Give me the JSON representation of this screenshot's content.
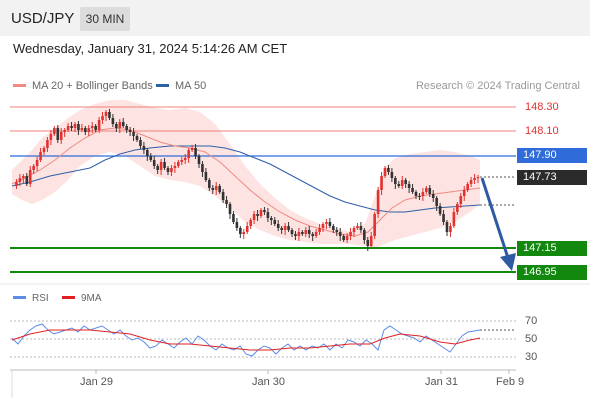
{
  "header": {
    "pair": "USD/JPY",
    "timeframe": "30 MIN"
  },
  "datetime": "Wednesday, January 31, 2024 5:14:26 AM CET",
  "legend": {
    "ma20": "MA 20 + Bollinger Bands",
    "ma50": "MA 50",
    "credit": "Research © 2024 Trading Central",
    "ma20_color": "#f08a84",
    "ma50_color": "#2d5fa8"
  },
  "levels": {
    "r2": "148.30",
    "r1": "148.10",
    "pivot": "147.90",
    "last": "147.73",
    "s1": "147.15",
    "s2": "146.95"
  },
  "colors": {
    "resistance": "#e0322e",
    "pivot": "#2f6bd9",
    "support": "#12880f",
    "candle_up": "#e0322e",
    "candle_down": "#333333",
    "arrow": "#2d5aa0"
  },
  "rsi": {
    "rsi_label": "RSI",
    "ma_label": "9MA",
    "rsi_color": "#5b8ce8",
    "ma_color": "#e02020",
    "levels": [
      "70",
      "50",
      "30"
    ]
  },
  "x_axis": {
    "labels": [
      "Jan 29",
      "Jan 30",
      "Jan 31",
      "Feb 9"
    ]
  }
}
